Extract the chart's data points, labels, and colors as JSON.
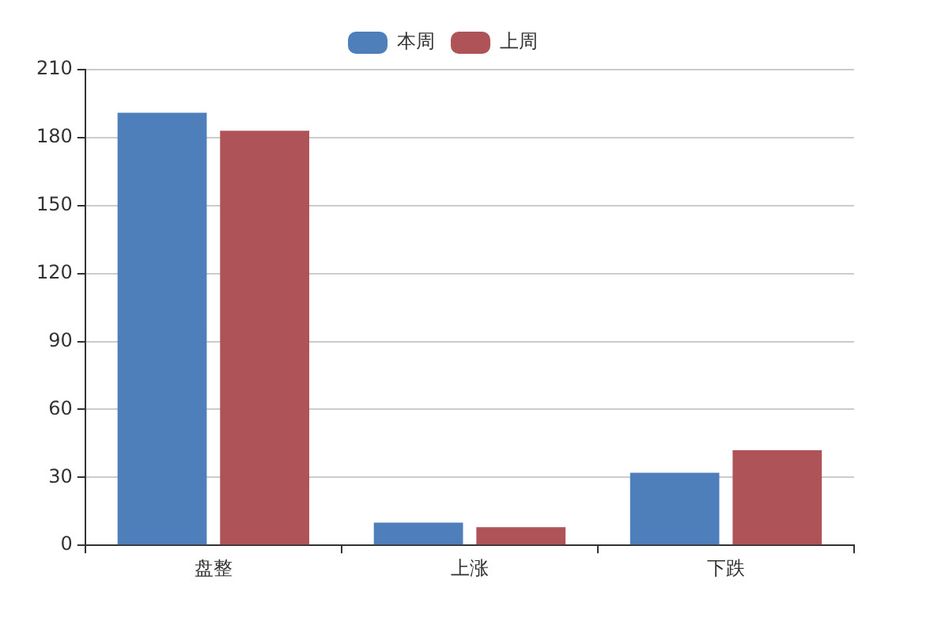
{
  "chart_data": {
    "type": "bar",
    "categories": [
      "盘整",
      "上涨",
      "下跌"
    ],
    "series": [
      {
        "name": "本周",
        "color": "#4e7fbb",
        "values": [
          191,
          10,
          32
        ]
      },
      {
        "name": "上周",
        "color": "#ae5357",
        "values": [
          183,
          8,
          42
        ]
      }
    ],
    "ylim": [
      0,
      210
    ],
    "yticks": [
      0,
      30,
      60,
      90,
      120,
      150,
      180,
      210
    ],
    "grid": "y",
    "legend": "top"
  }
}
